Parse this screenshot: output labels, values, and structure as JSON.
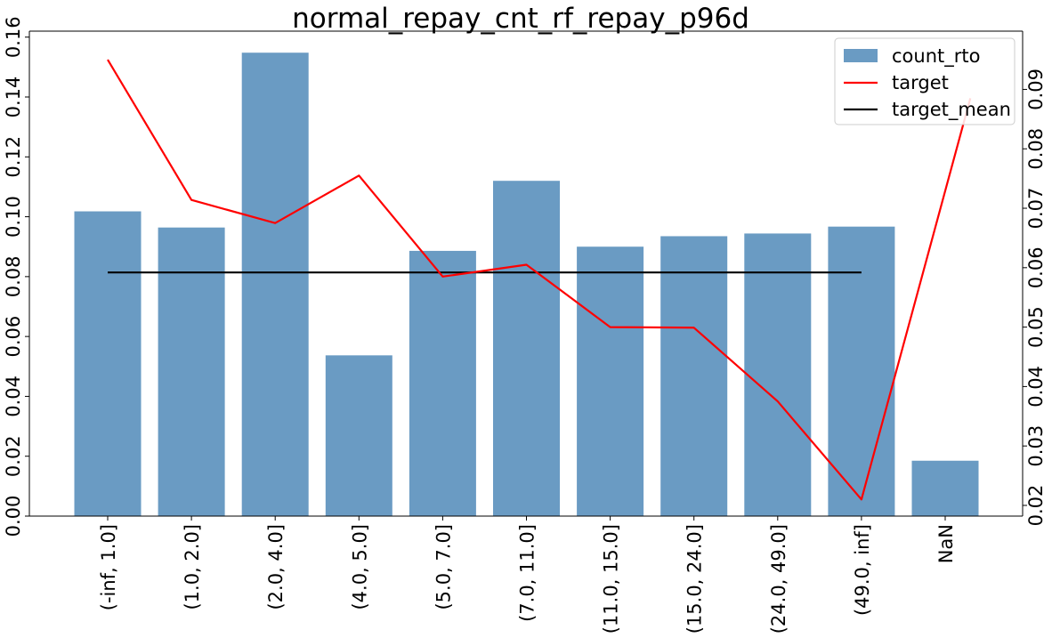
{
  "chart_data": {
    "type": "bar",
    "title": "normal_repay_cnt_rf_repay_p96d",
    "xlabel": "",
    "ylabel": "",
    "categories": [
      "(-inf, 1.0]",
      "(1.0, 2.0]",
      "(2.0, 4.0]",
      "(4.0, 5.0]",
      "(5.0, 7.0]",
      "(7.0, 11.0]",
      "(11.0, 15.0]",
      "(15.0, 24.0]",
      "(24.0, 49.0]",
      "(49.0, inf]",
      "NaN"
    ],
    "series": [
      {
        "name": "count_rto",
        "kind": "bar",
        "axis": "left",
        "color": "#6a9bc3",
        "values": [
          0.1018,
          0.0964,
          0.1548,
          0.0537,
          0.0886,
          0.112,
          0.09,
          0.0935,
          0.0944,
          0.0967,
          0.0185
        ]
      },
      {
        "name": "target",
        "kind": "line",
        "axis": "right",
        "color": "#ff0000",
        "values": [
          0.095,
          0.0714,
          0.0675,
          0.0755,
          0.0585,
          0.0605,
          0.05,
          0.0499,
          0.0375,
          0.021,
          null
        ]
      },
      {
        "name": "target_mean",
        "kind": "line",
        "axis": "right",
        "color": "#000000",
        "values": [
          0.0592,
          0.0592,
          0.0592,
          0.0592,
          0.0592,
          0.0592,
          0.0592,
          0.0592,
          0.0592,
          0.0592,
          0.0592
        ]
      }
    ],
    "target_end": {
      "x_position": 10.3,
      "value": 0.0885
    },
    "ylim_left": [
      0,
      0.162
    ],
    "ylim_right": [
      0.0182,
      0.0998
    ],
    "left_ticks": [
      "0.00",
      "0.02",
      "0.04",
      "0.06",
      "0.08",
      "0.10",
      "0.12",
      "0.14",
      "0.16"
    ],
    "right_ticks": [
      "0.02",
      "0.03",
      "0.04",
      "0.05",
      "0.06",
      "0.07",
      "0.08",
      "0.09"
    ],
    "legend": {
      "position": "top-right",
      "entries": [
        "count_rto",
        "target",
        "target_mean"
      ]
    },
    "grid": false
  }
}
